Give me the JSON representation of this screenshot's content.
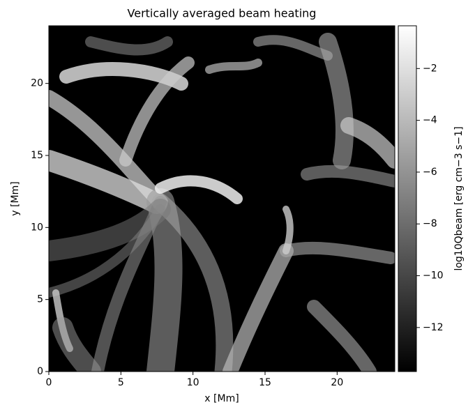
{
  "chart_data": {
    "type": "heatmap",
    "title": "Vertically averaged beam heating",
    "xlabel": "x [Mm]",
    "ylabel": "y [Mm]",
    "xlim": [
      0,
      24
    ],
    "ylim": [
      0,
      24
    ],
    "xticks": [
      0,
      5,
      10,
      15,
      20
    ],
    "yticks": [
      0,
      5,
      10,
      15,
      20
    ],
    "colorbar_label": "log10Qbeam [erg cm−3 s−1]",
    "clim": [
      -13.7,
      -0.35
    ],
    "cticks": [
      {
        "value": -2,
        "label": "−2"
      },
      {
        "value": -4,
        "label": "−4"
      },
      {
        "value": -6,
        "label": "−6"
      },
      {
        "value": -8,
        "label": "−8"
      },
      {
        "value": -10,
        "label": "−10"
      },
      {
        "value": -12,
        "label": "−12"
      }
    ],
    "cmap_colors": [
      "#000000",
      "#ffffff"
    ]
  }
}
